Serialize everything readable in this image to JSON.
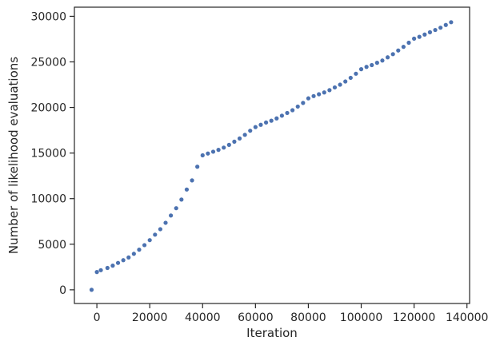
{
  "chart_data": {
    "type": "scatter",
    "title": "",
    "xlabel": "Iteration",
    "ylabel": "Number of likelihood evaluations",
    "xlim": [
      -8500,
      141000
    ],
    "ylim": [
      -1500,
      31000
    ],
    "x_ticks": [
      0,
      20000,
      40000,
      60000,
      80000,
      100000,
      120000,
      140000
    ],
    "y_ticks": [
      0,
      5000,
      10000,
      15000,
      20000,
      25000,
      30000
    ],
    "grid": false,
    "legend": "none",
    "marker_color": "#4C72B0",
    "series": [
      {
        "points": [
          [
            -2000,
            0
          ],
          [
            0,
            1950
          ],
          [
            1500,
            2150
          ],
          [
            4000,
            2400
          ],
          [
            6000,
            2650
          ],
          [
            8000,
            2950
          ],
          [
            10000,
            3250
          ],
          [
            12000,
            3550
          ],
          [
            14000,
            3950
          ],
          [
            16000,
            4400
          ],
          [
            18000,
            4900
          ],
          [
            20000,
            5450
          ],
          [
            22000,
            6050
          ],
          [
            24000,
            6650
          ],
          [
            26000,
            7350
          ],
          [
            28000,
            8150
          ],
          [
            30000,
            8950
          ],
          [
            32000,
            9900
          ],
          [
            34000,
            11000
          ],
          [
            36000,
            12000
          ],
          [
            38000,
            13500
          ],
          [
            40000,
            14750
          ],
          [
            42000,
            14950
          ],
          [
            44000,
            15150
          ],
          [
            46000,
            15350
          ],
          [
            48000,
            15600
          ],
          [
            50000,
            15900
          ],
          [
            52000,
            16250
          ],
          [
            54000,
            16600
          ],
          [
            56000,
            17000
          ],
          [
            58000,
            17450
          ],
          [
            60000,
            17850
          ],
          [
            62000,
            18100
          ],
          [
            64000,
            18350
          ],
          [
            66000,
            18550
          ],
          [
            68000,
            18800
          ],
          [
            70000,
            19100
          ],
          [
            72000,
            19400
          ],
          [
            74000,
            19700
          ],
          [
            76000,
            20100
          ],
          [
            78000,
            20500
          ],
          [
            80000,
            21000
          ],
          [
            82000,
            21250
          ],
          [
            84000,
            21450
          ],
          [
            86000,
            21650
          ],
          [
            88000,
            21900
          ],
          [
            90000,
            22200
          ],
          [
            92000,
            22500
          ],
          [
            94000,
            22850
          ],
          [
            96000,
            23250
          ],
          [
            98000,
            23700
          ],
          [
            100000,
            24200
          ],
          [
            102000,
            24450
          ],
          [
            104000,
            24650
          ],
          [
            106000,
            24900
          ],
          [
            108000,
            25150
          ],
          [
            110000,
            25500
          ],
          [
            112000,
            25850
          ],
          [
            114000,
            26250
          ],
          [
            116000,
            26650
          ],
          [
            118000,
            27100
          ],
          [
            120000,
            27550
          ],
          [
            122000,
            27750
          ],
          [
            124000,
            28000
          ],
          [
            126000,
            28250
          ],
          [
            128000,
            28500
          ],
          [
            130000,
            28750
          ],
          [
            132000,
            29050
          ],
          [
            134000,
            29350
          ]
        ]
      }
    ]
  }
}
